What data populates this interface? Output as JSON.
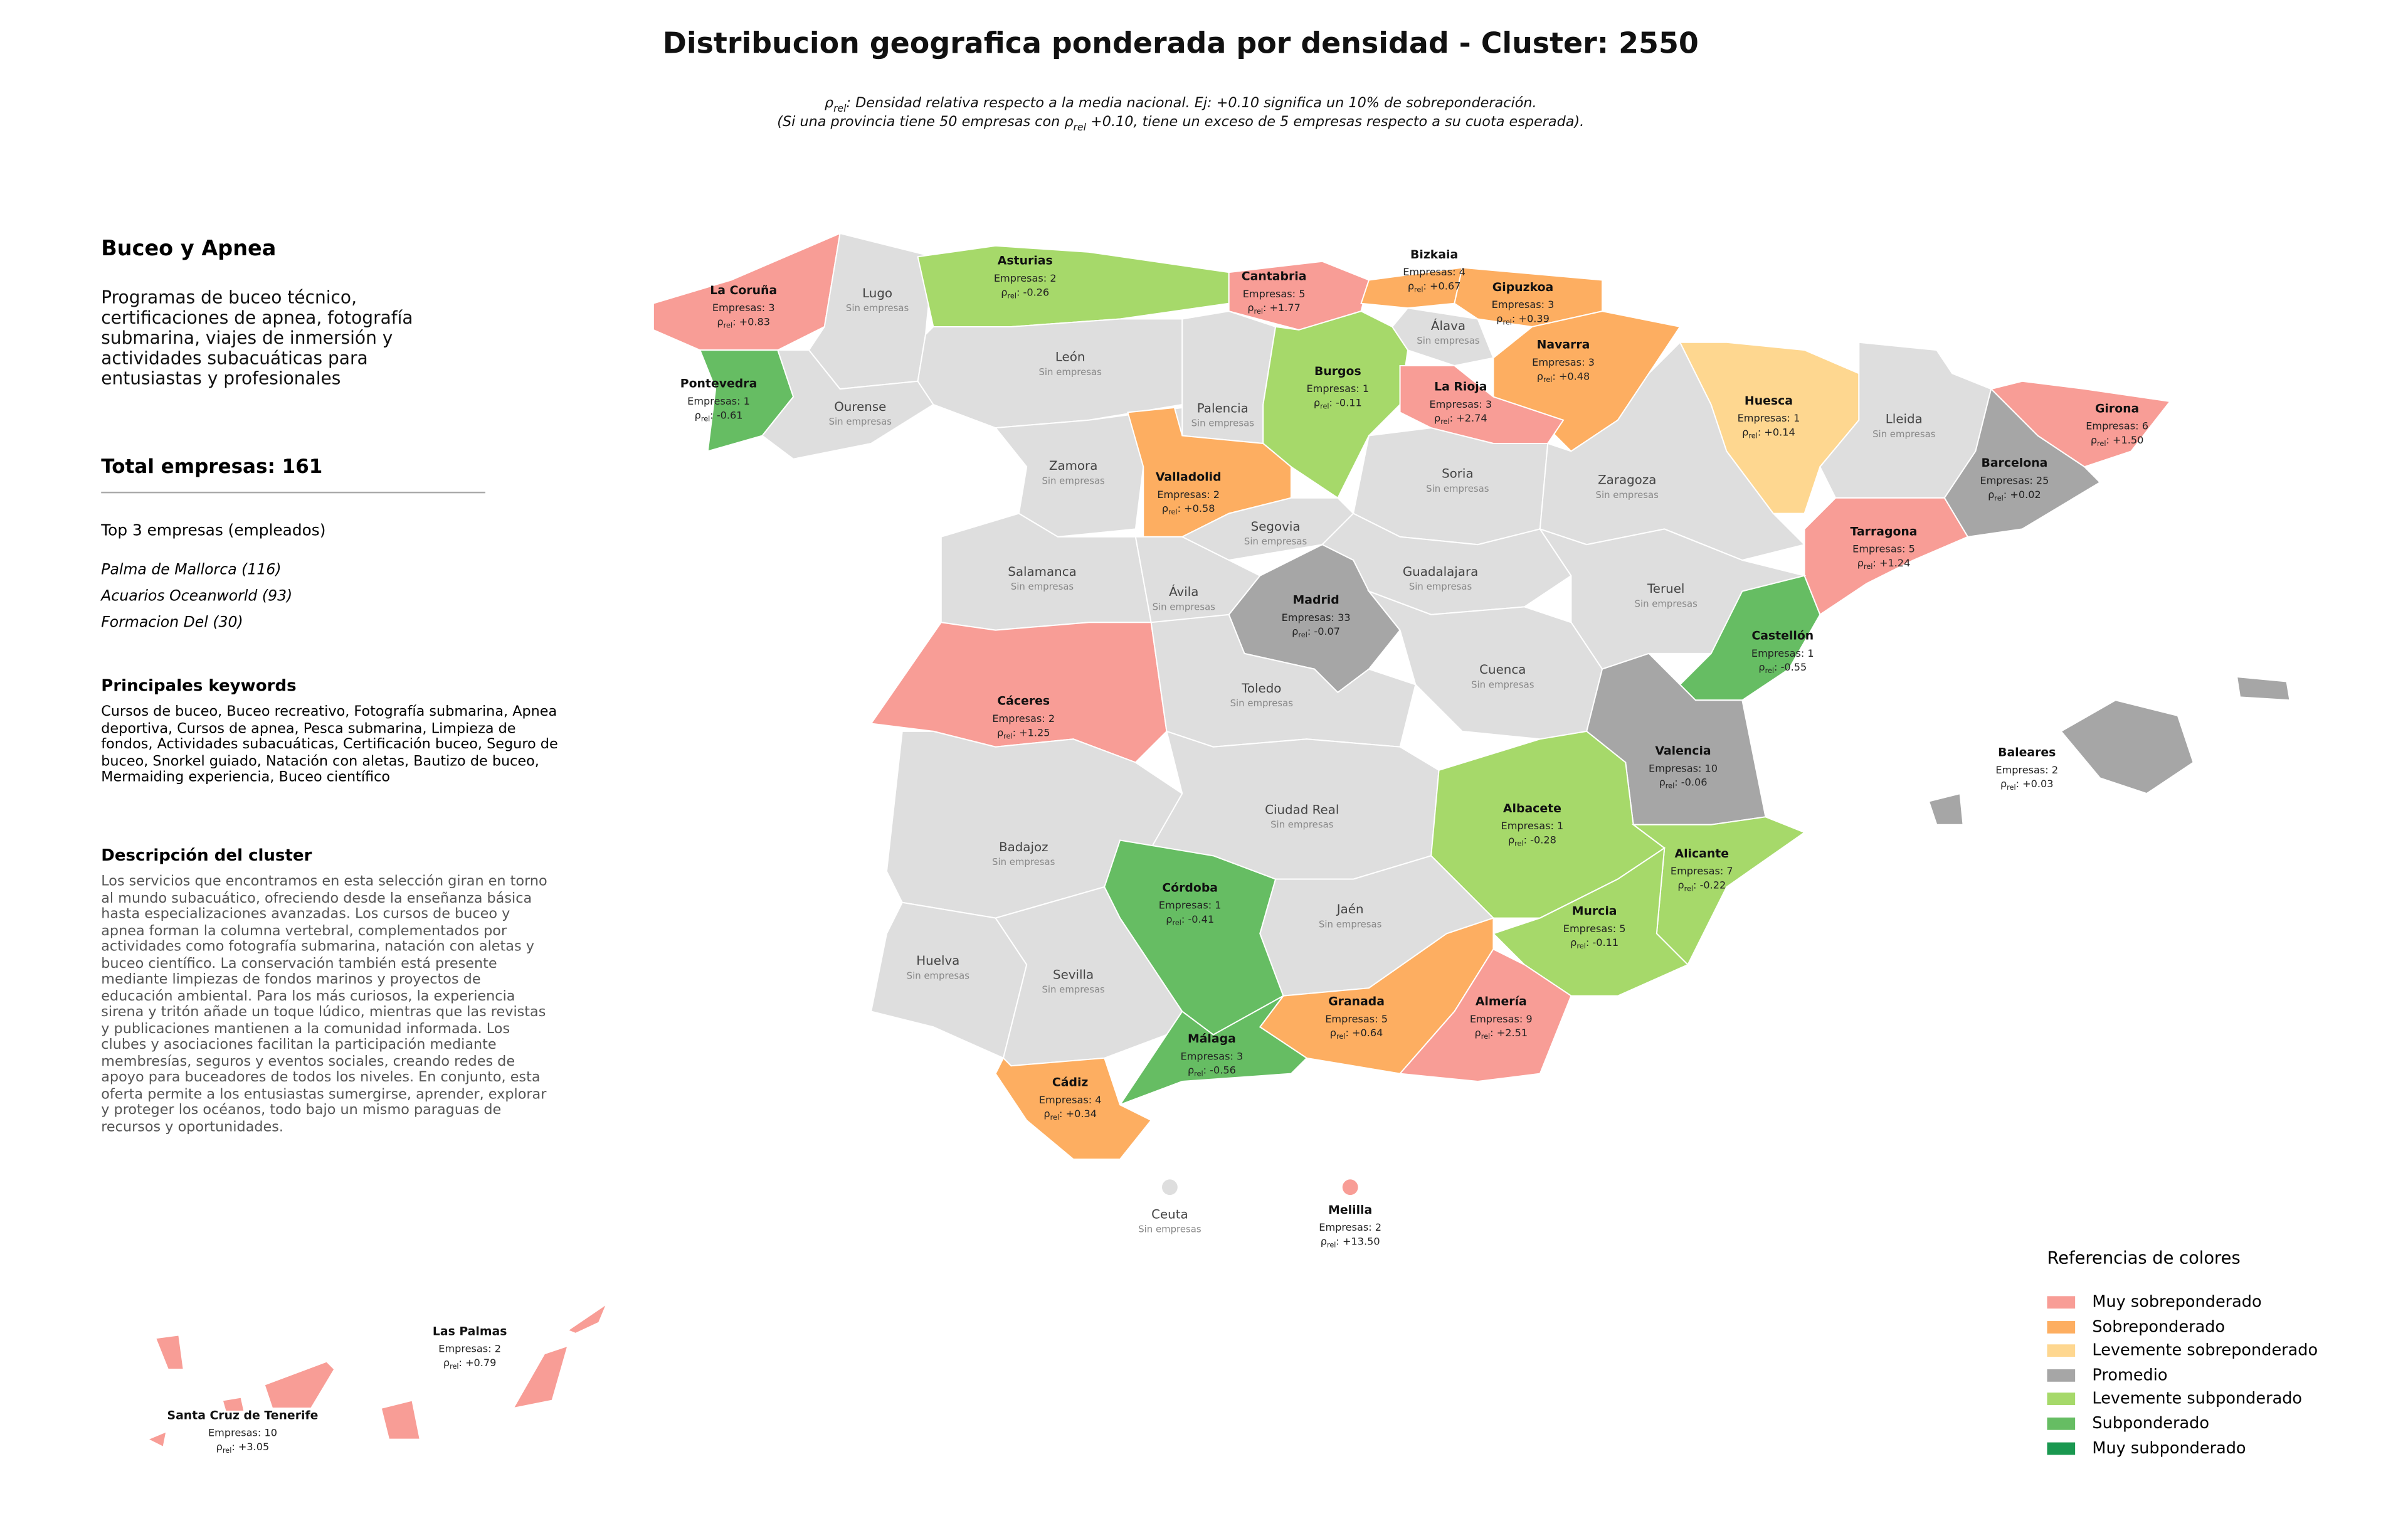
{
  "title": "Distribucion geografica ponderada por densidad - Cluster: 2550",
  "subtitle": [
    "ρrel: Densidad relativa respecto a la media nacional. Ej: +0.10 significa un 10% de sobreponderación.",
    "(Si una provincia tiene 50 empresas con ρrel +0.10, tiene un exceso de 5 empresas respecto a su cuota esperada)."
  ],
  "panel": {
    "cluster_name": "Buceo y Apnea",
    "cluster_description": "Programas de buceo técnico, certificaciones de apnea, fotografía submarina, viajes de inmersión y actividades subacuáticas para entusiastas y profesionales",
    "total": "Total empresas: 161",
    "top_heading": "Top 3 empresas (empleados)",
    "top": [
      "Palma de Mallorca (116)",
      "Acuarios Oceanworld (93)",
      "Formacion Del (30)"
    ],
    "keywords_heading": "Principales keywords",
    "keywords": "Cursos de buceo, Buceo recreativo, Fotografía submarina, Apnea deportiva, Cursos de apnea, Pesca submarina, Limpieza de fondos, Actividades subacuáticas, Certificación buceo, Seguro de buceo, Snorkel guiado, Natación con aletas, Bautizo de buceo, Mermaiding experiencia, Buceo científico",
    "description_heading": "Descripción del cluster",
    "description": "Los servicios que encontramos en esta selección giran en torno al mundo subacuático, ofreciendo desde la enseñanza básica hasta especializaciones avanzadas. Los cursos de buceo y apnea forman la columna vertebral, complementados por actividades como fotografía submarina, natación con aletas y buceo científico. La conservación también está presente mediante limpiezas de fondos marinos y proyectos de educación ambiental. Para los más curiosos, la experiencia sirena y tritón añade un toque lúdico, mientras que las revistas y publicaciones mantienen a la comunidad informada. Los clubes y asociaciones facilitan la participación mediante membresías, seguros y eventos sociales, creando redes de apoyo para buceadores de todos los niveles. En conjunto, esta oferta permite a los entusiastas sumergirse, aprender, explorar y proteger los océanos, todo bajo un mismo paraguas de recursos y oportunidades."
  },
  "provinces": [
    {
      "name": "La Coruña",
      "color": "#f89d96",
      "empresas": "Empresas: 3",
      "density": "ρrel: +0.83"
    },
    {
      "name": "Lugo",
      "color": "#dedede",
      "status": "Sin empresas"
    },
    {
      "name": "Pontevedra",
      "color": "#66bd63",
      "empresas": "Empresas: 1",
      "density": "ρrel: -0.61"
    },
    {
      "name": "Ourense",
      "color": "#dedede",
      "status": "Sin empresas"
    },
    {
      "name": "Asturias",
      "color": "#a6d96a",
      "empresas": "Empresas: 2",
      "density": "ρrel: -0.26"
    },
    {
      "name": "Cantabria",
      "color": "#f89d96",
      "empresas": "Empresas: 5",
      "density": "ρrel: +1.77"
    },
    {
      "name": "Bizkaia",
      "color": "#fdae61",
      "empresas": "Empresas: 4",
      "density": "ρrel: +0.67"
    },
    {
      "name": "Gipuzkoa",
      "color": "#fdae61",
      "empresas": "Empresas: 3",
      "density": "ρrel: +0.39"
    },
    {
      "name": "Álava",
      "color": "#dedede",
      "status": "Sin empresas"
    },
    {
      "name": "Navarra",
      "color": "#fdae61",
      "empresas": "Empresas: 3",
      "density": "ρrel: +0.48"
    },
    {
      "name": "León",
      "color": "#dedede",
      "status": "Sin empresas"
    },
    {
      "name": "Palencia",
      "color": "#dedede",
      "status": "Sin empresas"
    },
    {
      "name": "Burgos",
      "color": "#a6d96a",
      "empresas": "Empresas: 1",
      "density": "ρrel: -0.11"
    },
    {
      "name": "La Rioja",
      "color": "#f89d96",
      "empresas": "Empresas: 3",
      "density": "ρrel: +2.74"
    },
    {
      "name": "Zamora",
      "color": "#dedede",
      "status": "Sin empresas"
    },
    {
      "name": "Valladolid",
      "color": "#fdae61",
      "empresas": "Empresas: 2",
      "density": "ρrel: +0.58"
    },
    {
      "name": "Soria",
      "color": "#dedede",
      "status": "Sin empresas"
    },
    {
      "name": "Zaragoza",
      "color": "#dedede",
      "status": "Sin empresas"
    },
    {
      "name": "Huesca",
      "color": "#fed790",
      "empresas": "Empresas: 1",
      "density": "ρrel: +0.14"
    },
    {
      "name": "Lleida",
      "color": "#dedede",
      "status": "Sin empresas"
    },
    {
      "name": "Girona",
      "color": "#f89d96",
      "empresas": "Empresas: 6",
      "density": "ρrel: +1.50"
    },
    {
      "name": "Barcelona",
      "color": "#a6a6a6",
      "empresas": "Empresas: 25",
      "density": "ρrel: +0.02"
    },
    {
      "name": "Tarragona",
      "color": "#f89d96",
      "empresas": "Empresas: 5",
      "density": "ρrel: +1.24"
    },
    {
      "name": "Segovia",
      "color": "#dedede",
      "status": "Sin empresas"
    },
    {
      "name": "Salamanca",
      "color": "#dedede",
      "status": "Sin empresas"
    },
    {
      "name": "Ávila",
      "color": "#dedede",
      "status": "Sin empresas"
    },
    {
      "name": "Guadalajara",
      "color": "#dedede",
      "status": "Sin empresas"
    },
    {
      "name": "Teruel",
      "color": "#dedede",
      "status": "Sin empresas"
    },
    {
      "name": "Madrid",
      "color": "#a6a6a6",
      "empresas": "Empresas: 33",
      "density": "ρrel: -0.07"
    },
    {
      "name": "Castellón",
      "color": "#66bd63",
      "empresas": "Empresas: 1",
      "density": "ρrel: -0.55"
    },
    {
      "name": "Cuenca",
      "color": "#dedede",
      "status": "Sin empresas"
    },
    {
      "name": "Cáceres",
      "color": "#f89d96",
      "empresas": "Empresas: 2",
      "density": "ρrel: +1.25"
    },
    {
      "name": "Toledo",
      "color": "#dedede",
      "status": "Sin empresas"
    },
    {
      "name": "Valencia",
      "color": "#a6a6a6",
      "empresas": "Empresas: 10",
      "density": "ρrel: -0.06"
    },
    {
      "name": "Badajoz",
      "color": "#dedede",
      "status": "Sin empresas"
    },
    {
      "name": "Ciudad Real",
      "color": "#dedede",
      "status": "Sin empresas"
    },
    {
      "name": "Albacete",
      "color": "#a6d96a",
      "empresas": "Empresas: 1",
      "density": "ρrel: -0.28"
    },
    {
      "name": "Alicante",
      "color": "#a6d96a",
      "empresas": "Empresas: 7",
      "density": "ρrel: -0.22"
    },
    {
      "name": "Murcia",
      "color": "#a6d96a",
      "empresas": "Empresas: 5",
      "density": "ρrel: -0.11"
    },
    {
      "name": "Huelva",
      "color": "#dedede",
      "status": "Sin empresas"
    },
    {
      "name": "Sevilla",
      "color": "#dedede",
      "status": "Sin empresas"
    },
    {
      "name": "Córdoba",
      "color": "#66bd63",
      "empresas": "Empresas: 1",
      "density": "ρrel: -0.41"
    },
    {
      "name": "Jaén",
      "color": "#dedede",
      "status": "Sin empresas"
    },
    {
      "name": "Granada",
      "color": "#fdae61",
      "empresas": "Empresas: 5",
      "density": "ρrel: +0.64"
    },
    {
      "name": "Almería",
      "color": "#f89d96",
      "empresas": "Empresas: 9",
      "density": "ρrel: +2.51"
    },
    {
      "name": "Málaga",
      "color": "#66bd63",
      "empresas": "Empresas: 3",
      "density": "ρrel: -0.56"
    },
    {
      "name": "Cádiz",
      "color": "#fdae61",
      "empresas": "Empresas: 4",
      "density": "ρrel: +0.34"
    },
    {
      "name": "Baleares",
      "color": "#a6a6a6",
      "empresas": "Empresas: 2",
      "density": "ρrel: +0.03"
    },
    {
      "name": "Ceuta",
      "color": "#dedede",
      "status": "Sin empresas"
    },
    {
      "name": "Melilla",
      "color": "#f89d96",
      "empresas": "Empresas: 2",
      "density": "ρrel: +13.50"
    },
    {
      "name": "Las Palmas",
      "color": "#f89d96",
      "empresas": "Empresas: 2",
      "density": "ρrel: +0.79"
    },
    {
      "name": "Santa Cruz de Tenerife",
      "color": "#f89d96",
      "empresas": "Empresas: 10",
      "density": "ρrel: +3.05"
    }
  ],
  "legend": {
    "title": "Referencias de colores",
    "items": [
      {
        "name": "Muy sobreponderado",
        "color": "#f89d96"
      },
      {
        "name": "Sobreponderado",
        "color": "#fdae61"
      },
      {
        "name": "Levemente sobreponderado",
        "color": "#fed790"
      },
      {
        "name": "Promedio",
        "color": "#a6a6a6"
      },
      {
        "name": "Levemente subponderado",
        "color": "#a6d96a"
      },
      {
        "name": "Subponderado",
        "color": "#66bd63"
      },
      {
        "name": "Muy subponderado",
        "color": "#1a9850"
      }
    ]
  }
}
